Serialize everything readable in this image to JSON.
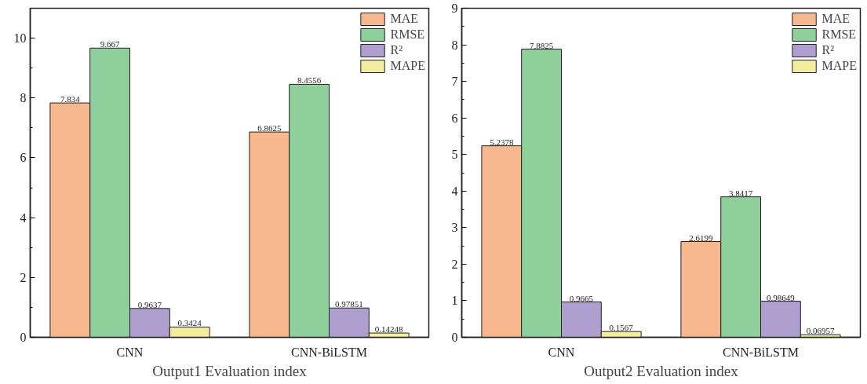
{
  "chart_data": [
    {
      "type": "bar",
      "xlabel": "Output1 Evaluation index",
      "categories": [
        "CNN",
        "CNN-BiLSTM"
      ],
      "series": [
        {
          "name": "MAE",
          "color": "#f7b78f",
          "values": [
            7.834,
            6.8625
          ]
        },
        {
          "name": "RMSE",
          "color": "#8ecf9c",
          "values": [
            9.667,
            8.4556
          ]
        },
        {
          "name": "R²",
          "color": "#ae9fcf",
          "values": [
            0.9637,
            0.97851
          ]
        },
        {
          "name": "MAPE",
          "color": "#f2ee9e",
          "values": [
            0.3424,
            0.14248
          ]
        }
      ],
      "ylim": [
        0,
        11
      ],
      "yticks": [
        0,
        2,
        4,
        6,
        8,
        10
      ],
      "data_labels": true,
      "legend": "top right",
      "grid": false
    },
    {
      "type": "bar",
      "xlabel": "Output2 Evaluation index",
      "categories": [
        "CNN",
        "CNN-BiLSTM"
      ],
      "series": [
        {
          "name": "MAE",
          "color": "#f7b78f",
          "values": [
            5.2378,
            2.6199
          ]
        },
        {
          "name": "RMSE",
          "color": "#8ecf9c",
          "values": [
            7.8825,
            3.8417
          ]
        },
        {
          "name": "R²",
          "color": "#ae9fcf",
          "values": [
            0.9665,
            0.98649
          ]
        },
        {
          "name": "MAPE",
          "color": "#f2ee9e",
          "values": [
            0.1567,
            0.06957
          ]
        }
      ],
      "ylim": [
        0,
        9
      ],
      "yticks": [
        0,
        1,
        2,
        3,
        4,
        5,
        6,
        7,
        8,
        9
      ],
      "data_labels": true,
      "legend": "top right",
      "grid": false
    }
  ]
}
